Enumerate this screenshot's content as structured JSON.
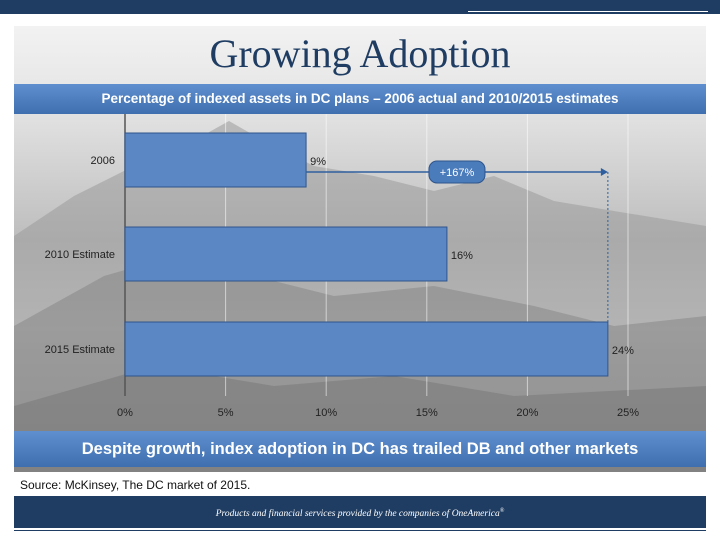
{
  "title": "Growing Adoption",
  "subtitle": "Percentage of indexed assets in DC plans – 2006 actual and 2010/2015 estimates",
  "bottom_message": "Despite growth, index adoption in DC has trailed DB and other markets",
  "source": "Source: McKinsey, The DC market of 2015.",
  "footer": {
    "text": "Products and financial services provided by the companies of OneAmerica",
    "mark": "®"
  },
  "colors": {
    "bar": "#5b87c4",
    "accent": "#1f3d63",
    "band": "#4a7bbb"
  },
  "chart_data": {
    "type": "bar",
    "orientation": "horizontal",
    "categories": [
      "2006",
      "2010 Estimate",
      "2015 Estimate"
    ],
    "values": [
      9,
      16,
      24
    ],
    "value_labels": [
      "9%",
      "16%",
      "24%"
    ],
    "xlim": [
      0,
      25
    ],
    "x_ticks": [
      0,
      5,
      10,
      15,
      20,
      25
    ],
    "x_tick_labels": [
      "0%",
      "5%",
      "10%",
      "15%",
      "20%",
      "25%"
    ],
    "grid": true,
    "annotation": {
      "text": "+167%",
      "from": 9,
      "to": 24,
      "category": "2006"
    }
  }
}
